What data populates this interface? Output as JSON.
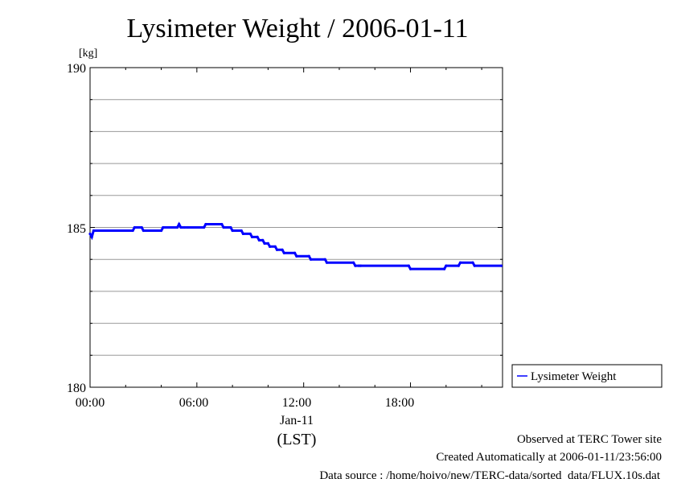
{
  "chart_data": {
    "type": "line",
    "title": "Lysimeter Weight / 2006-01-11",
    "ylabel": "[kg]",
    "xlabel": "(LST)",
    "date_label": "Jan-11",
    "ylim": [
      180,
      190
    ],
    "xlim_hours": [
      0,
      23.17
    ],
    "y_ticks": [
      "180",
      "185",
      "190"
    ],
    "x_ticks": [
      "00:00",
      "06:00",
      "12:00",
      "18:00"
    ],
    "grid": true,
    "legend_position": "outside-right-bottom",
    "series": [
      {
        "name": "Lysimeter Weight",
        "color": "#0000ff",
        "x": [
          0.0,
          0.1,
          0.2,
          2.4,
          2.5,
          2.9,
          3.0,
          4.0,
          4.1,
          4.9,
          5.0,
          5.1,
          5.3,
          5.5,
          6.4,
          6.5,
          7.4,
          7.5,
          7.9,
          8.0,
          8.5,
          8.6,
          9.0,
          9.1,
          9.4,
          9.5,
          9.7,
          9.8,
          10.0,
          10.1,
          10.4,
          10.5,
          10.8,
          10.9,
          11.5,
          11.6,
          12.3,
          12.4,
          13.2,
          13.3,
          14.8,
          14.9,
          15.1,
          15.2,
          17.9,
          18.0,
          19.9,
          20.0,
          20.7,
          20.8,
          21.5,
          21.6,
          23.1
        ],
        "y": [
          184.8,
          184.7,
          184.9,
          184.9,
          185.0,
          185.0,
          184.9,
          184.9,
          185.0,
          185.0,
          185.1,
          185.0,
          185.0,
          185.0,
          185.0,
          185.1,
          185.1,
          185.0,
          185.0,
          184.9,
          184.9,
          184.8,
          184.8,
          184.7,
          184.7,
          184.6,
          184.6,
          184.5,
          184.5,
          184.4,
          184.4,
          184.3,
          184.3,
          184.2,
          184.2,
          184.1,
          184.1,
          184.0,
          184.0,
          183.9,
          183.9,
          183.8,
          183.8,
          183.8,
          183.8,
          183.7,
          183.7,
          183.8,
          183.8,
          183.9,
          183.9,
          183.8,
          183.8
        ]
      }
    ]
  },
  "footer": {
    "line1": "Observed at TERC Tower site",
    "line2": "Created Automatically at 2006-01-11/23:56:00",
    "line3": "Data source : /home/hoivo/new/TERC-data/sorted_data/FLUX.10s.dat"
  }
}
